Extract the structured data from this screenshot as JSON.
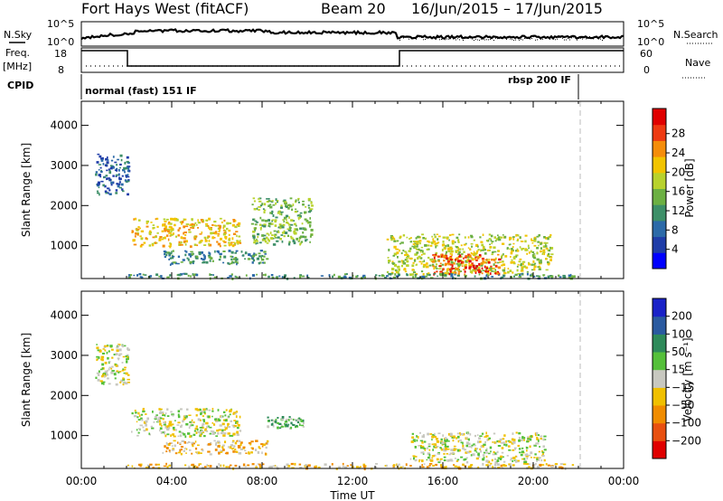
{
  "header": {
    "station": "Fort Hays West (fitACF)",
    "beam": "Beam 20",
    "dates": "16/Jun/2015 – 17/Jun/2015"
  },
  "top_panels": {
    "nsky_label": "N.Sky",
    "nsky_top": "10^5",
    "nsky_bottom": "10^0",
    "nsearch_label": "N.Search",
    "nsearch_top": "10^5",
    "nsearch_bottom": "10^0",
    "freq_label": "Freq.",
    "freq_unit": "[MHz]",
    "freq_top": "18",
    "freq_bottom": "8",
    "nave_label": "Nave",
    "nave_top": "60",
    "nave_bottom": "0",
    "cpid_label": "CPID",
    "cpid_modes": [
      "normal (fast) 151 IF",
      "rbsp 200 IF"
    ]
  },
  "chart_data": [
    {
      "type": "heatmap",
      "panel": "power",
      "ylabel": "Slant Range [km]",
      "xlabel": "Time UT",
      "x_ticks": [
        "00:00",
        "04:00",
        "08:00",
        "12:00",
        "16:00",
        "20:00",
        "00:00"
      ],
      "y_ticks": [
        1000,
        2000,
        3000,
        4000
      ],
      "ylim": [
        180,
        4600
      ],
      "xlim_hours": [
        0,
        24
      ],
      "colorbar": {
        "label": "Power [dB]",
        "ticks": [
          "4",
          "8",
          "12",
          "16",
          "20",
          "24",
          "28"
        ],
        "colors": [
          "#0000ff",
          "#1f3da8",
          "#2c6aa8",
          "#3d8f68",
          "#6cb043",
          "#b8d22d",
          "#f2c400",
          "#f58d0a",
          "#ee3a12",
          "#e00000"
        ]
      },
      "regions": [
        {
          "t0": 0.6,
          "t1": 2.1,
          "r0": 2300,
          "r1": 3300,
          "level": 2
        },
        {
          "t0": 2.2,
          "t1": 7.0,
          "r0": 1000,
          "r1": 1700,
          "level": 6
        },
        {
          "t0": 3.5,
          "t1": 8.2,
          "r0": 550,
          "r1": 900,
          "level": 3
        },
        {
          "t0": 7.5,
          "t1": 10.2,
          "r0": 1050,
          "r1": 2200,
          "level": 4
        },
        {
          "t0": 13.5,
          "t1": 20.8,
          "r0": 300,
          "r1": 1300,
          "level": 5
        },
        {
          "t0": 15.5,
          "t1": 18.5,
          "r0": 300,
          "r1": 800,
          "level": 8
        },
        {
          "t0": 2.0,
          "t1": 22.0,
          "r0": 200,
          "r1": 320,
          "level": 3
        }
      ]
    },
    {
      "type": "heatmap",
      "panel": "velocity",
      "ylabel": "Slant Range [km]",
      "xlabel": "Time UT",
      "x_ticks": [
        "00:00",
        "04:00",
        "08:00",
        "12:00",
        "16:00",
        "20:00",
        "00:00"
      ],
      "y_ticks": [
        1000,
        2000,
        3000,
        4000
      ],
      "ylim": [
        180,
        4600
      ],
      "xlim_hours": [
        0,
        24
      ],
      "colorbar": {
        "label": "Velocity [m s⁻¹]",
        "ticks": [
          "200",
          "100",
          "50",
          "15",
          "−15",
          "−50",
          "−100",
          "−200"
        ],
        "colors": [
          "#1a22c8",
          "#2a5aa0",
          "#2e8a5a",
          "#55c03a",
          "#c8c8c0",
          "#f0c000",
          "#f08c00",
          "#e85010",
          "#e00000"
        ]
      },
      "regions": [
        {
          "t0": 0.6,
          "t1": 2.1,
          "r0": 2300,
          "r1": 3300,
          "level": 4
        },
        {
          "t0": 2.2,
          "t1": 7.0,
          "r0": 1000,
          "r1": 1700,
          "level": 4
        },
        {
          "t0": 3.5,
          "t1": 8.2,
          "r0": 550,
          "r1": 900,
          "level": 5
        },
        {
          "t0": 8.2,
          "t1": 9.8,
          "r0": 1200,
          "r1": 1500,
          "level": 3
        },
        {
          "t0": 14.5,
          "t1": 20.5,
          "r0": 350,
          "r1": 1100,
          "level": 4
        },
        {
          "t0": 2.0,
          "t1": 22.0,
          "r0": 200,
          "r1": 320,
          "level": 5
        }
      ]
    }
  ]
}
